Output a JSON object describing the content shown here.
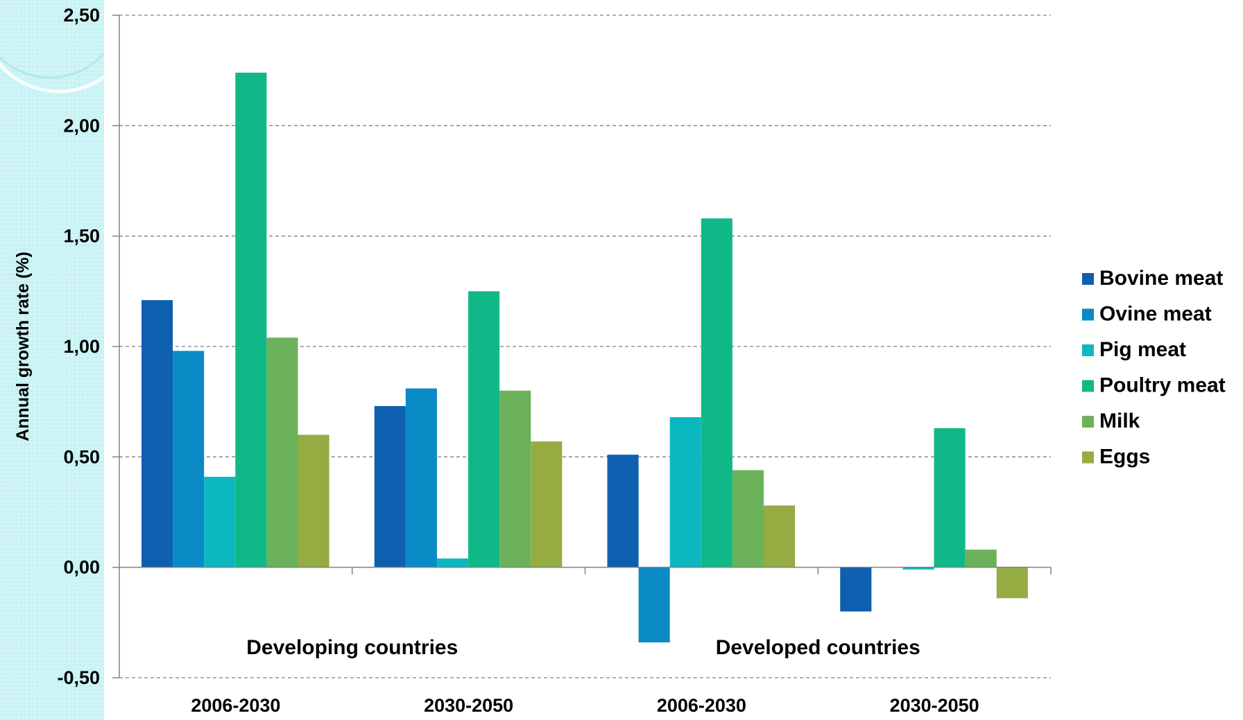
{
  "chart_data": {
    "type": "bar",
    "ylabel": "Annual growth rate (%)",
    "ylim": [
      -0.5,
      2.5
    ],
    "yticks": [
      "2,50",
      "2,00",
      "1,50",
      "1,00",
      "0,50",
      "0,00",
      "-0,50"
    ],
    "ytick_values": [
      2.5,
      2.0,
      1.5,
      1.0,
      0.5,
      0.0,
      -0.5
    ],
    "grid": true,
    "legend_position": "right",
    "categories": [
      "2006-2030",
      "2030-2050",
      "2006-2030",
      "2030-2050"
    ],
    "groups": [
      "Developing countries",
      "Developed countries"
    ],
    "series": [
      {
        "name": "Bovine meat",
        "color": "#0E5FAF",
        "values": [
          1.21,
          0.73,
          0.51,
          -0.2
        ]
      },
      {
        "name": "Ovine meat",
        "color": "#0A8AC4",
        "values": [
          0.98,
          0.81,
          -0.34,
          0.0
        ]
      },
      {
        "name": "Pig meat",
        "color": "#0CB8C0",
        "values": [
          0.41,
          0.04,
          0.68,
          -0.01
        ]
      },
      {
        "name": "Poultry meat",
        "color": "#10B888",
        "values": [
          2.24,
          1.25,
          1.58,
          0.63
        ]
      },
      {
        "name": "Milk",
        "color": "#6BB25A",
        "values": [
          1.04,
          0.8,
          0.44,
          0.08
        ]
      },
      {
        "name": "Eggs",
        "color": "#95AC42",
        "values": [
          0.6,
          0.57,
          0.28,
          -0.14
        ]
      }
    ]
  },
  "page": {
    "background_accent": "#c9f2f4"
  }
}
